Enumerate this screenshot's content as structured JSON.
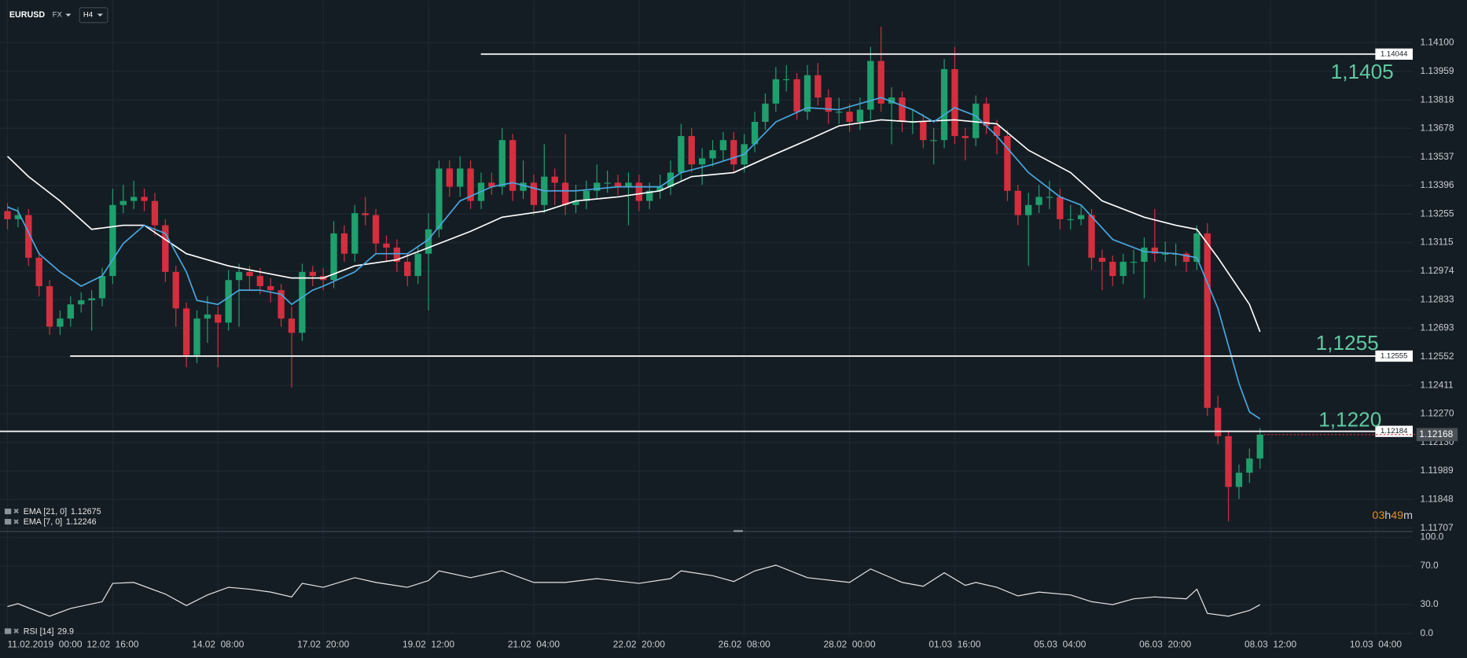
{
  "header": {
    "symbol": "EURUSD",
    "market": "FX",
    "interval": "H4"
  },
  "chart_data": [
    {
      "type": "candlestick",
      "open": [
        1.1327,
        1.1323,
        1.1325,
        1.1304,
        1.129,
        1.127,
        1.1274,
        1.1281,
        1.1283,
        1.1284,
        1.1295,
        1.133,
        1.1332,
        1.1334,
        1.1332,
        1.132,
        1.1297,
        1.1279,
        1.1256,
        1.1274,
        1.1276,
        1.1272,
        1.1293,
        1.1297,
        1.1295,
        1.129,
        1.1288,
        1.1274,
        1.1267,
        1.1297,
        1.1295,
        1.1293,
        1.1316,
        1.1306,
        1.1326,
        1.1325,
        1.1311,
        1.1309,
        1.1302,
        1.1295,
        1.1306,
        1.1318,
        1.1348,
        1.1339,
        1.1348,
        1.1332,
        1.1341,
        1.1339,
        1.1362,
        1.1337,
        1.1341,
        1.133,
        1.1344,
        1.1341,
        1.133,
        1.1332,
        1.1337,
        1.1341,
        1.1341,
        1.1339,
        1.1341,
        1.1332,
        1.1337,
        1.1339,
        1.1346,
        1.1364,
        1.135,
        1.1353,
        1.1357,
        1.1362,
        1.135,
        1.136,
        1.1371,
        1.138,
        1.1392,
        1.1392,
        1.1376,
        1.1394,
        1.1383,
        1.1376,
        1.1376,
        1.1371,
        1.1377,
        1.1401,
        1.138,
        1.1383,
        1.1371,
        1.1371,
        1.1362,
        1.1362,
        1.1397,
        1.1364,
        1.1363,
        1.138,
        1.1369,
        1.1364,
        1.1337,
        1.1325,
        1.133,
        1.1334,
        1.1334,
        1.1323,
        1.1323,
        1.1325,
        1.1304,
        1.1302,
        1.1295,
        1.1302,
        1.1302,
        1.1309,
        1.1306,
        1.1306,
        1.1306,
        1.1302,
        1.1316,
        1.123,
        1.1216,
        1.1191,
        1.1198,
        1.1205
      ],
      "high": [
        1.1331,
        1.1329,
        1.1328,
        1.1307,
        1.1293,
        1.1278,
        1.1285,
        1.1287,
        1.1288,
        1.1299,
        1.1338,
        1.134,
        1.1342,
        1.1338,
        1.1336,
        1.1323,
        1.13,
        1.1282,
        1.1278,
        1.1285,
        1.128,
        1.1298,
        1.1301,
        1.13,
        1.1299,
        1.1294,
        1.1291,
        1.128,
        1.1301,
        1.13,
        1.1299,
        1.1322,
        1.132,
        1.133,
        1.1334,
        1.1328,
        1.1315,
        1.1313,
        1.1306,
        1.131,
        1.1326,
        1.1352,
        1.1352,
        1.1354,
        1.1352,
        1.1346,
        1.1346,
        1.1368,
        1.1365,
        1.1352,
        1.1345,
        1.136,
        1.1348,
        1.1365,
        1.134,
        1.1342,
        1.135,
        1.1347,
        1.1345,
        1.1346,
        1.1345,
        1.1341,
        1.1345,
        1.1352,
        1.137,
        1.1368,
        1.1358,
        1.1362,
        1.1366,
        1.1366,
        1.1365,
        1.1376,
        1.1385,
        1.1398,
        1.1399,
        1.1395,
        1.1399,
        1.14,
        1.1387,
        1.1383,
        1.138,
        1.1383,
        1.1408,
        1.1418,
        1.1388,
        1.1386,
        1.1377,
        1.1375,
        1.1368,
        1.1402,
        1.1408,
        1.1368,
        1.1384,
        1.1383,
        1.1372,
        1.1367,
        1.134,
        1.1336,
        1.134,
        1.1342,
        1.1338,
        1.133,
        1.133,
        1.1328,
        1.1308,
        1.1305,
        1.1306,
        1.1308,
        1.1314,
        1.1328,
        1.1312,
        1.1311,
        1.1307,
        1.132,
        1.1321,
        1.1236,
        1.1219,
        1.1202,
        1.121,
        1.122
      ],
      "low": [
        1.1318,
        1.1319,
        1.13,
        1.1285,
        1.1266,
        1.1266,
        1.127,
        1.1277,
        1.1268,
        1.128,
        1.1291,
        1.1326,
        1.1328,
        1.1327,
        1.1315,
        1.1292,
        1.127,
        1.125,
        1.1252,
        1.1262,
        1.125,
        1.1268,
        1.127,
        1.1288,
        1.1286,
        1.1282,
        1.127,
        1.124,
        1.1263,
        1.129,
        1.1288,
        1.1289,
        1.1302,
        1.1302,
        1.132,
        1.1306,
        1.1302,
        1.1297,
        1.129,
        1.1291,
        1.1278,
        1.1314,
        1.1334,
        1.1334,
        1.1328,
        1.1328,
        1.1335,
        1.1335,
        1.1332,
        1.1333,
        1.1325,
        1.1326,
        1.133,
        1.1325,
        1.1326,
        1.1328,
        1.1333,
        1.1336,
        1.1335,
        1.132,
        1.1327,
        1.1328,
        1.1333,
        1.1335,
        1.1342,
        1.1346,
        1.134,
        1.1349,
        1.1352,
        1.1346,
        1.1346,
        1.1356,
        1.1367,
        1.1376,
        1.1386,
        1.1372,
        1.1372,
        1.1379,
        1.137,
        1.137,
        1.1366,
        1.1367,
        1.1372,
        1.1376,
        1.136,
        1.1366,
        1.1365,
        1.1358,
        1.135,
        1.1358,
        1.136,
        1.1352,
        1.1359,
        1.1365,
        1.1355,
        1.1332,
        1.132,
        1.13,
        1.1326,
        1.1328,
        1.1318,
        1.1318,
        1.132,
        1.1298,
        1.1288,
        1.129,
        1.1291,
        1.1296,
        1.1284,
        1.1302,
        1.1302,
        1.13,
        1.1297,
        1.1298,
        1.1226,
        1.1212,
        1.1174,
        1.1185,
        1.1193,
        1.12
      ],
      "close": [
        1.1323,
        1.1325,
        1.1304,
        1.129,
        1.127,
        1.1274,
        1.1281,
        1.1283,
        1.1284,
        1.1295,
        1.133,
        1.1332,
        1.1334,
        1.1332,
        1.132,
        1.1297,
        1.1279,
        1.1256,
        1.1274,
        1.1276,
        1.1272,
        1.1293,
        1.1297,
        1.1295,
        1.129,
        1.1288,
        1.1274,
        1.1267,
        1.1297,
        1.1295,
        1.1293,
        1.1316,
        1.1306,
        1.1326,
        1.1325,
        1.1311,
        1.1309,
        1.1302,
        1.1295,
        1.1306,
        1.1318,
        1.1348,
        1.1339,
        1.1348,
        1.1332,
        1.1341,
        1.1339,
        1.1362,
        1.1337,
        1.1341,
        1.133,
        1.1344,
        1.1341,
        1.133,
        1.1332,
        1.1337,
        1.1341,
        1.1341,
        1.1339,
        1.1341,
        1.1332,
        1.1337,
        1.1339,
        1.1346,
        1.1364,
        1.135,
        1.1353,
        1.1357,
        1.1362,
        1.135,
        1.136,
        1.1371,
        1.138,
        1.1392,
        1.1392,
        1.1376,
        1.1394,
        1.1383,
        1.1376,
        1.1376,
        1.1371,
        1.1377,
        1.1401,
        1.138,
        1.1383,
        1.1371,
        1.1371,
        1.1362,
        1.1362,
        1.1397,
        1.1364,
        1.1363,
        1.138,
        1.1369,
        1.1364,
        1.1337,
        1.1325,
        1.133,
        1.1334,
        1.1334,
        1.1323,
        1.1323,
        1.1325,
        1.1304,
        1.1302,
        1.1295,
        1.1302,
        1.1302,
        1.1309,
        1.1306,
        1.1306,
        1.1306,
        1.1302,
        1.1316,
        1.123,
        1.1216,
        1.1191,
        1.1198,
        1.1205,
        1.12168
      ],
      "up_color": "#1f9f6d",
      "down_color": "#d42f3f",
      "xlim": [
        -0.71,
        133.51
      ],
      "xticks": [
        {
          "value": 0,
          "label": "11.02.2019  00:00"
        },
        {
          "value": 10,
          "label": "12.02  16:00"
        },
        {
          "value": 20,
          "label": "14.02  08:00"
        },
        {
          "value": 30,
          "label": "17.02  20:00"
        },
        {
          "value": 40,
          "label": "19.02  12:00"
        },
        {
          "value": 50,
          "label": "21.02  04:00"
        },
        {
          "value": 60,
          "label": "22.02  20:00"
        },
        {
          "value": 70,
          "label": "26.02  08:00"
        },
        {
          "value": 80,
          "label": "28.02  00:00"
        },
        {
          "value": 90,
          "label": "01.03  16:00"
        },
        {
          "value": 100,
          "label": "05.03  04:00"
        },
        {
          "value": 110,
          "label": "06.03  20:00"
        },
        {
          "value": 120,
          "label": "08.03  12:00"
        },
        {
          "value": 130,
          "label": "10.03  04:00"
        }
      ],
      "ylim": [
        1.1169,
        1.1431
      ],
      "yticks": [
        {
          "value": 1.141,
          "label": "1.14100"
        },
        1.13959,
        1.13818,
        1.13678,
        1.13537,
        1.13396,
        1.13255,
        1.13115,
        1.12974,
        1.12833,
        1.12693,
        1.12552,
        1.12411,
        {
          "value": 1.1227,
          "label": "1.12270"
        },
        {
          "value": 1.1213,
          "label": "1.12130"
        },
        1.11989,
        1.11848,
        1.11707
      ],
      "grid": true,
      "overlays": [
        {
          "name": "EMA [21, 0]",
          "color": "#ffffff",
          "x": [
            0,
            2,
            5,
            8,
            11,
            13,
            17,
            21,
            24,
            27,
            30,
            33,
            37,
            40,
            44,
            47,
            51,
            54,
            58,
            62,
            65,
            69,
            72,
            76,
            79,
            83,
            86,
            90,
            94,
            97,
            101,
            104,
            108,
            111,
            113,
            115,
            118,
            119
          ],
          "values": [
            1.1354,
            1.1344,
            1.1332,
            1.1318,
            1.132,
            1.132,
            1.1306,
            1.13,
            1.1297,
            1.1294,
            1.1294,
            1.13,
            1.1303,
            1.1309,
            1.1317,
            1.1324,
            1.1327,
            1.1332,
            1.1334,
            1.1337,
            1.1344,
            1.1346,
            1.1353,
            1.1362,
            1.1369,
            1.1372,
            1.1371,
            1.1372,
            1.137,
            1.1357,
            1.1346,
            1.1332,
            1.1324,
            1.132,
            1.1318,
            1.1304,
            1.1281,
            1.12675
          ]
        },
        {
          "name": "EMA [7, 0]",
          "color": "#4aa8e0",
          "x": [
            0,
            1,
            3,
            5,
            7,
            9,
            11,
            13,
            15,
            17,
            18,
            20,
            22,
            24,
            26,
            27,
            29,
            30,
            33,
            35,
            38,
            40,
            43,
            46,
            48,
            51,
            54,
            58,
            62,
            64,
            67,
            70,
            73,
            76,
            79,
            83,
            86,
            88,
            90,
            92,
            94,
            97,
            100,
            102,
            105,
            108,
            111,
            113,
            115,
            117,
            118,
            119
          ],
          "values": [
            1.1329,
            1.1327,
            1.1306,
            1.1297,
            1.129,
            1.1295,
            1.1311,
            1.132,
            1.1316,
            1.1297,
            1.1283,
            1.1281,
            1.1288,
            1.1288,
            1.1286,
            1.1281,
            1.1288,
            1.129,
            1.1297,
            1.1306,
            1.1306,
            1.1313,
            1.1332,
            1.1339,
            1.1341,
            1.1337,
            1.1337,
            1.1339,
            1.1339,
            1.1346,
            1.135,
            1.1355,
            1.1371,
            1.1378,
            1.1377,
            1.1383,
            1.1377,
            1.1371,
            1.1378,
            1.1374,
            1.1364,
            1.1346,
            1.1334,
            1.133,
            1.1313,
            1.1307,
            1.1306,
            1.1304,
            1.1279,
            1.1242,
            1.1228,
            1.12246
          ]
        }
      ],
      "levels": [
        {
          "value": 1.14044,
          "annotation": "1,1405"
        },
        {
          "value": 1.12555,
          "annotation": "1,1255"
        },
        {
          "value": 1.12184,
          "annotation": "1,1220"
        }
      ],
      "timer": {
        "hours": "03",
        "hours_unit": "h",
        "minutes": "49",
        "minutes_unit": "m"
      }
    },
    {
      "type": "line",
      "series": [
        {
          "name": "RSI [14]",
          "color": "#e6e6e6",
          "x": [
            0,
            1,
            4,
            6,
            9,
            10,
            12,
            15,
            17,
            19,
            21,
            23,
            25,
            27,
            28,
            30,
            33,
            35,
            38,
            40,
            41,
            44,
            47,
            50,
            53,
            56,
            60,
            63,
            64,
            67,
            69,
            71,
            73,
            76,
            80,
            82,
            85,
            87,
            89,
            91,
            92,
            94,
            96,
            98,
            101,
            103,
            105,
            107,
            109,
            112,
            113,
            114,
            116,
            118,
            119
          ],
          "values": [
            28,
            31,
            18,
            26,
            33,
            52,
            53,
            41,
            29,
            40,
            48,
            46,
            43,
            38,
            52,
            48,
            58,
            53,
            48,
            55,
            65,
            58,
            65,
            53,
            53,
            57,
            52,
            57,
            65,
            60,
            54,
            65,
            71,
            58,
            53,
            67,
            53,
            49,
            63,
            50,
            53,
            48,
            39,
            43,
            40,
            33,
            30,
            36,
            38,
            36,
            46,
            21,
            18,
            24,
            29.9
          ]
        }
      ],
      "ylim": [
        0,
        100
      ],
      "yticks": [
        {
          "value": 100,
          "label": "100.0"
        },
        {
          "value": 70,
          "label": "70.0"
        },
        {
          "value": 30,
          "label": "30.0"
        },
        {
          "value": 0,
          "label": "0.0"
        }
      ]
    }
  ]
}
